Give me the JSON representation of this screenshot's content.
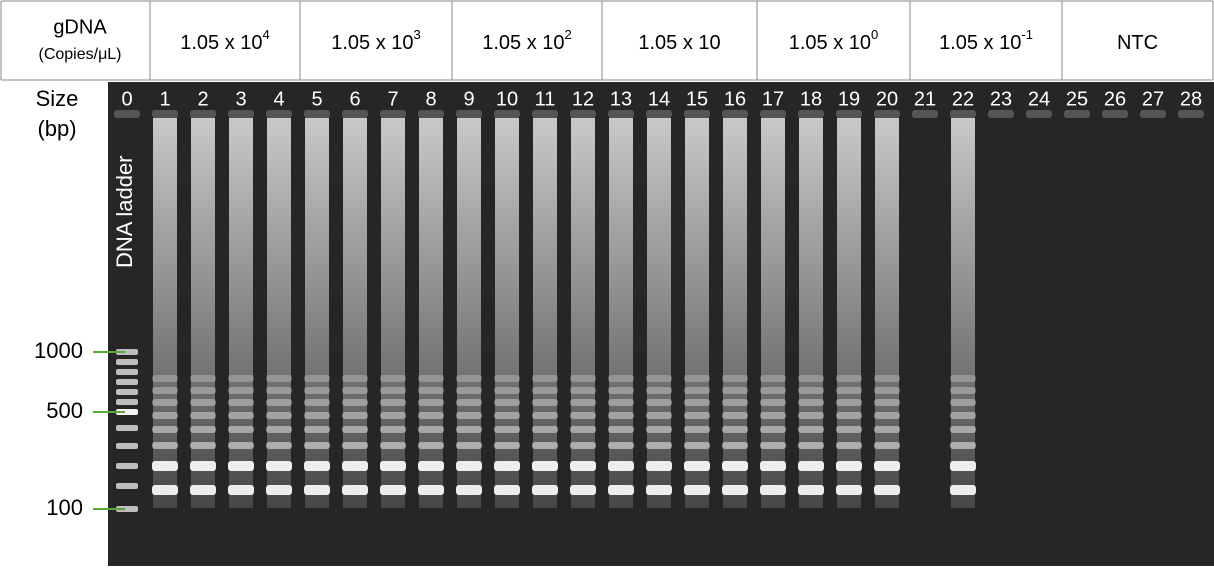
{
  "header": {
    "sample": {
      "title": "gDNA",
      "unit": "(Copies/μL)"
    },
    "groups": [
      {
        "base": "1.05 x 10",
        "exp": "4"
      },
      {
        "base": "1.05 x 10",
        "exp": "3"
      },
      {
        "base": "1.05 x 10",
        "exp": "2"
      },
      {
        "base": "1.05 x 10"
      },
      {
        "base": "1.05 x 10",
        "exp": "0"
      },
      {
        "base": "1.05 x 10",
        "exp": "-1"
      },
      {
        "base": "NTC"
      }
    ]
  },
  "size_label": {
    "title": "Size",
    "unit": "(bp)"
  },
  "lanes": [
    "0",
    "1",
    "2",
    "3",
    "4",
    "5",
    "6",
    "7",
    "8",
    "9",
    "10",
    "11",
    "12",
    "13",
    "14",
    "15",
    "16",
    "17",
    "18",
    "19",
    "20",
    "21",
    "22",
    "23",
    "24",
    "25",
    "26",
    "27",
    "28"
  ],
  "ladder_label": "DNA ladder",
  "markers": [
    "1000",
    "500",
    "100"
  ]
}
